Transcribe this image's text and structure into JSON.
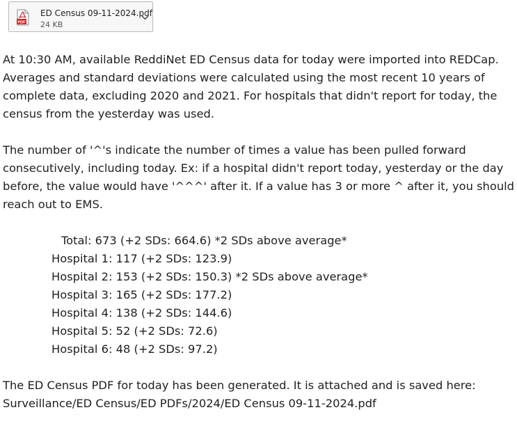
{
  "attachment": {
    "file_name": "ED Census 09-11-2024.pdf",
    "file_size": "24 KB",
    "icon": "pdf-file-icon",
    "icon_label": "PDF",
    "accent_color": "#d9232d"
  },
  "message": {
    "intro_lines": [
      "At 10:30 AM, available ReddiNet ED Census data for today were imported into REDCap.",
      "Averages and standard deviations were calculated using the most recent 10 years of",
      "complete data, excluding 2020 and 2021. For hospitals that didn't report for today, the",
      "census from the yesterday was used."
    ],
    "caret_lines": [
      "The number of '^'s indicate the number of times a value has been pulled forward",
      "consecutively, including today. Ex: if a hospital didn't report today, yesterday or the day",
      "before, the value would have '^^^' after it. If a value has 3 or more ^ after it, you should",
      "reach out to EMS."
    ],
    "census_total": "Total: 673 (+2 SDs: 664.6)  *2 SDs above average*",
    "census_rows": [
      "Hospital 1: 117 (+2 SDs: 123.9)",
      "Hospital 2: 153 (+2 SDs: 150.3)  *2 SDs above average*",
      "Hospital 3: 165 (+2 SDs: 177.2)",
      "Hospital 4: 138 (+2 SDs: 144.6)",
      "Hospital 5: 52 (+2 SDs: 72.6)",
      "Hospital 6: 48 (+2 SDs: 97.2)"
    ],
    "closing_lines": [
      "The ED Census PDF for today has been generated. It is attached and is saved here:",
      "Surveillance/ED Census/ED PDFs/2024/ED Census 09-11-2024.pdf"
    ]
  }
}
